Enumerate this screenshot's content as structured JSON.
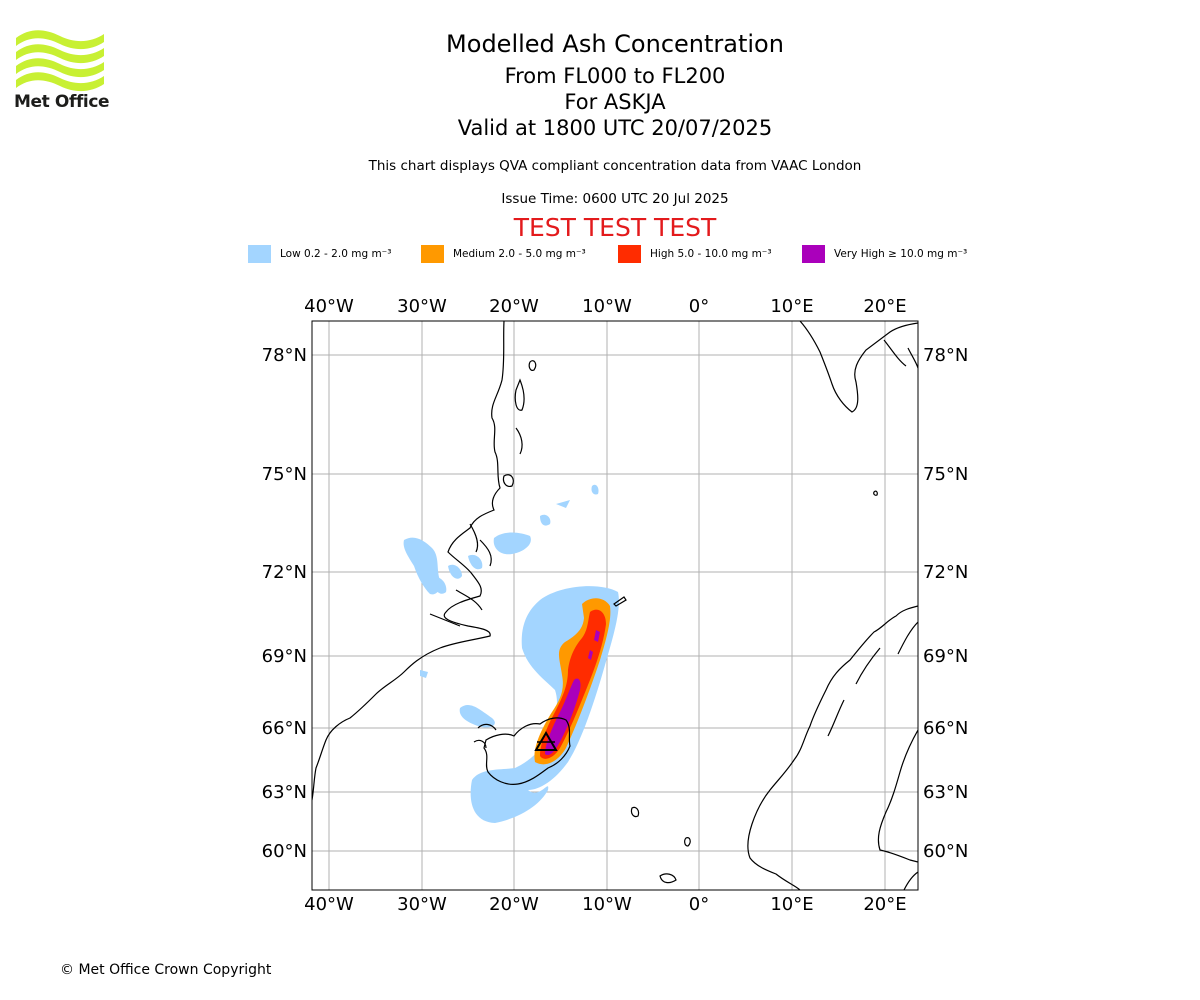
{
  "logo": {
    "text": "Met Office",
    "colors": {
      "waves": "#c8f033",
      "text": "#1d1d1b"
    }
  },
  "header": {
    "title": "Modelled Ash Concentration",
    "level_range": "From FL000 to FL200",
    "volcano": "For ASKJA",
    "valid_time": "Valid at 1800 UTC 20/07/2025",
    "note": "This chart displays QVA compliant concentration data from VAAC London",
    "issue_time": "Issue Time: 0600 UTC 20 Jul 2025",
    "test_banner": "TEST TEST TEST"
  },
  "legend": {
    "items": [
      {
        "label": "Low 0.2 - 2.0 mg m⁻³",
        "color": "#a3d5ff"
      },
      {
        "label": "Medium 2.0 - 5.0 mg m⁻³",
        "color": "#ff9900"
      },
      {
        "label": "High 5.0 - 10.0 mg m⁻³",
        "color": "#ff2c00"
      },
      {
        "label": "Very High  ≥  10.0 mg m⁻³",
        "color": "#aa00bb"
      }
    ]
  },
  "map": {
    "lon_ticks": [
      "40°W",
      "30°W",
      "20°W",
      "10°W",
      "0°",
      "10°E",
      "20°E"
    ],
    "lat_ticks": [
      "78°N",
      "75°N",
      "72°N",
      "69°N",
      "66°N",
      "63°N",
      "60°N"
    ],
    "gridlines": true,
    "volcano_marker": "ASKJA"
  },
  "footer": {
    "copyright": "© Met Office Crown Copyright"
  }
}
